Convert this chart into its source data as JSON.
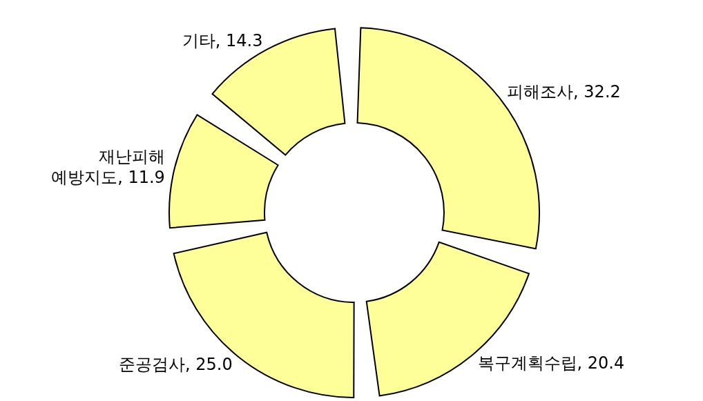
{
  "chart_data": {
    "type": "donut",
    "categories": [
      "피해조사",
      "복구계획수립",
      "준공검사",
      "재난피해 예방지도",
      "기타"
    ],
    "data_labels": true,
    "values": [
      32.2,
      20.4,
      25.0,
      11.9,
      14.3
    ],
    "colors": [
      "#ffff99",
      "#ffff99",
      "#ffff99",
      "#ffff99",
      "#ffff99"
    ],
    "value_labels": [
      "32.2",
      "20.4",
      "25.0",
      "11.9",
      "14.3"
    ]
  }
}
